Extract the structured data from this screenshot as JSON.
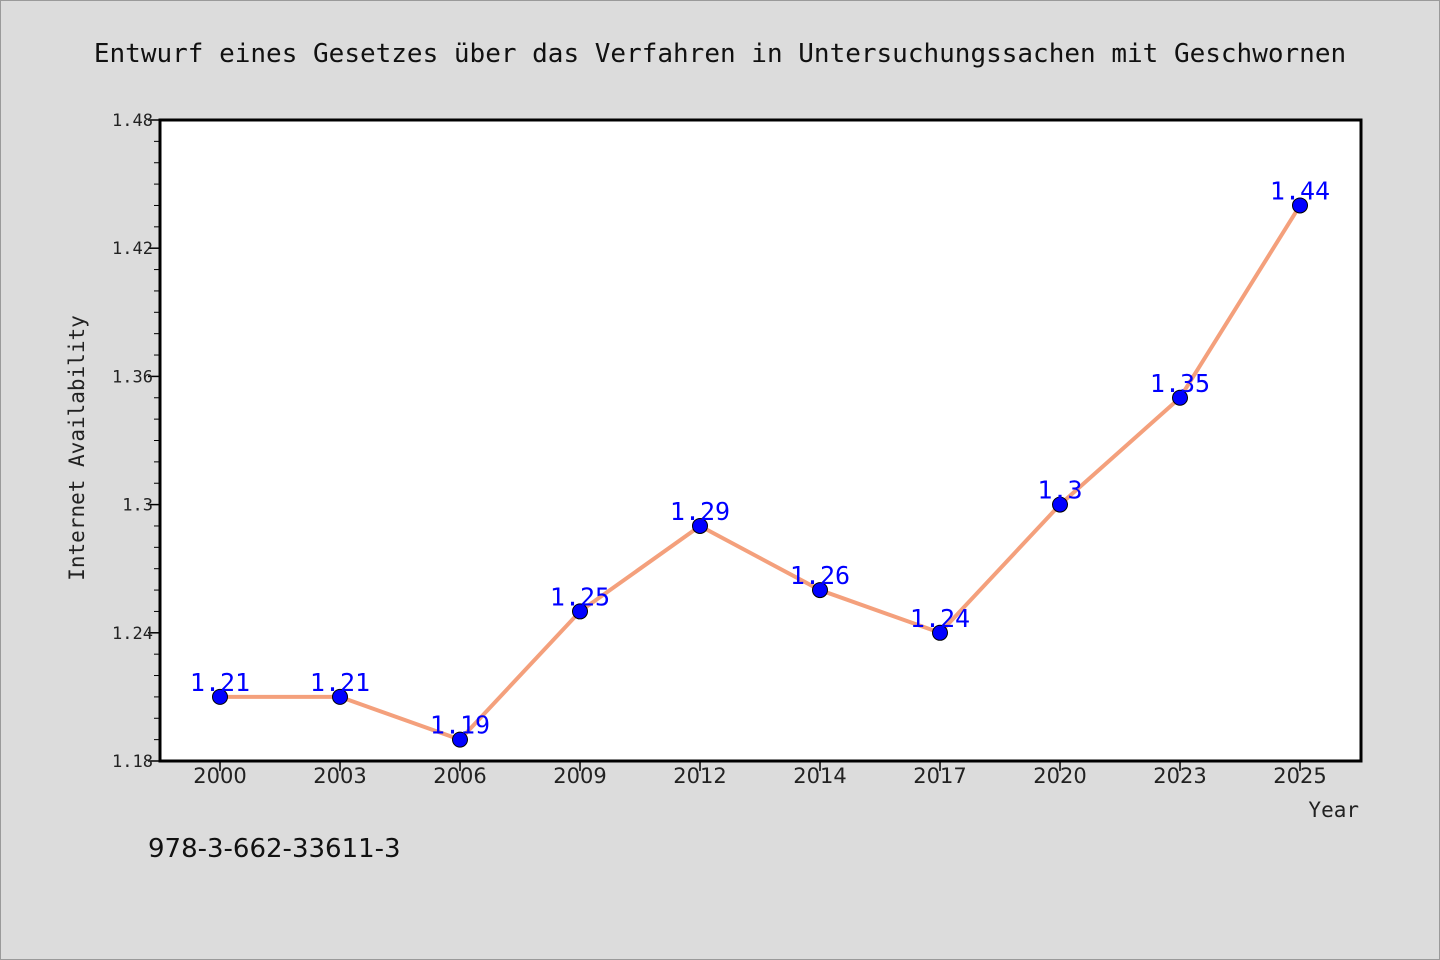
{
  "chart_data": {
    "type": "line",
    "title": "Entwurf eines Gesetzes über das Verfahren in Untersuchungssachen mit Geschwornen",
    "xlabel": "Year",
    "ylabel": "Internet Availability",
    "categories": [
      "2000",
      "2003",
      "2006",
      "2009",
      "2012",
      "2014",
      "2017",
      "2020",
      "2023",
      "2025"
    ],
    "series": [
      {
        "values": [
          1.21,
          1.21,
          1.19,
          1.25,
          1.29,
          1.26,
          1.24,
          1.3,
          1.35,
          1.44
        ]
      }
    ],
    "data_labels": [
      "1.21",
      "1.21",
      "1.19",
      "1.25",
      "1.29",
      "1.26",
      "1.24",
      "1.3",
      "1.35",
      "1.44"
    ],
    "ylim": [
      1.18,
      1.48
    ],
    "yticks": [
      "1.18",
      "1.24",
      "1.3",
      "1.36",
      "1.42",
      "1.48"
    ],
    "line_color": "#f4a07c",
    "marker_color": "#0000ff",
    "label_color": "#0000ff",
    "grid": false,
    "legend": "none"
  },
  "footer": {
    "isbn": "978-3-662-33611-3"
  }
}
